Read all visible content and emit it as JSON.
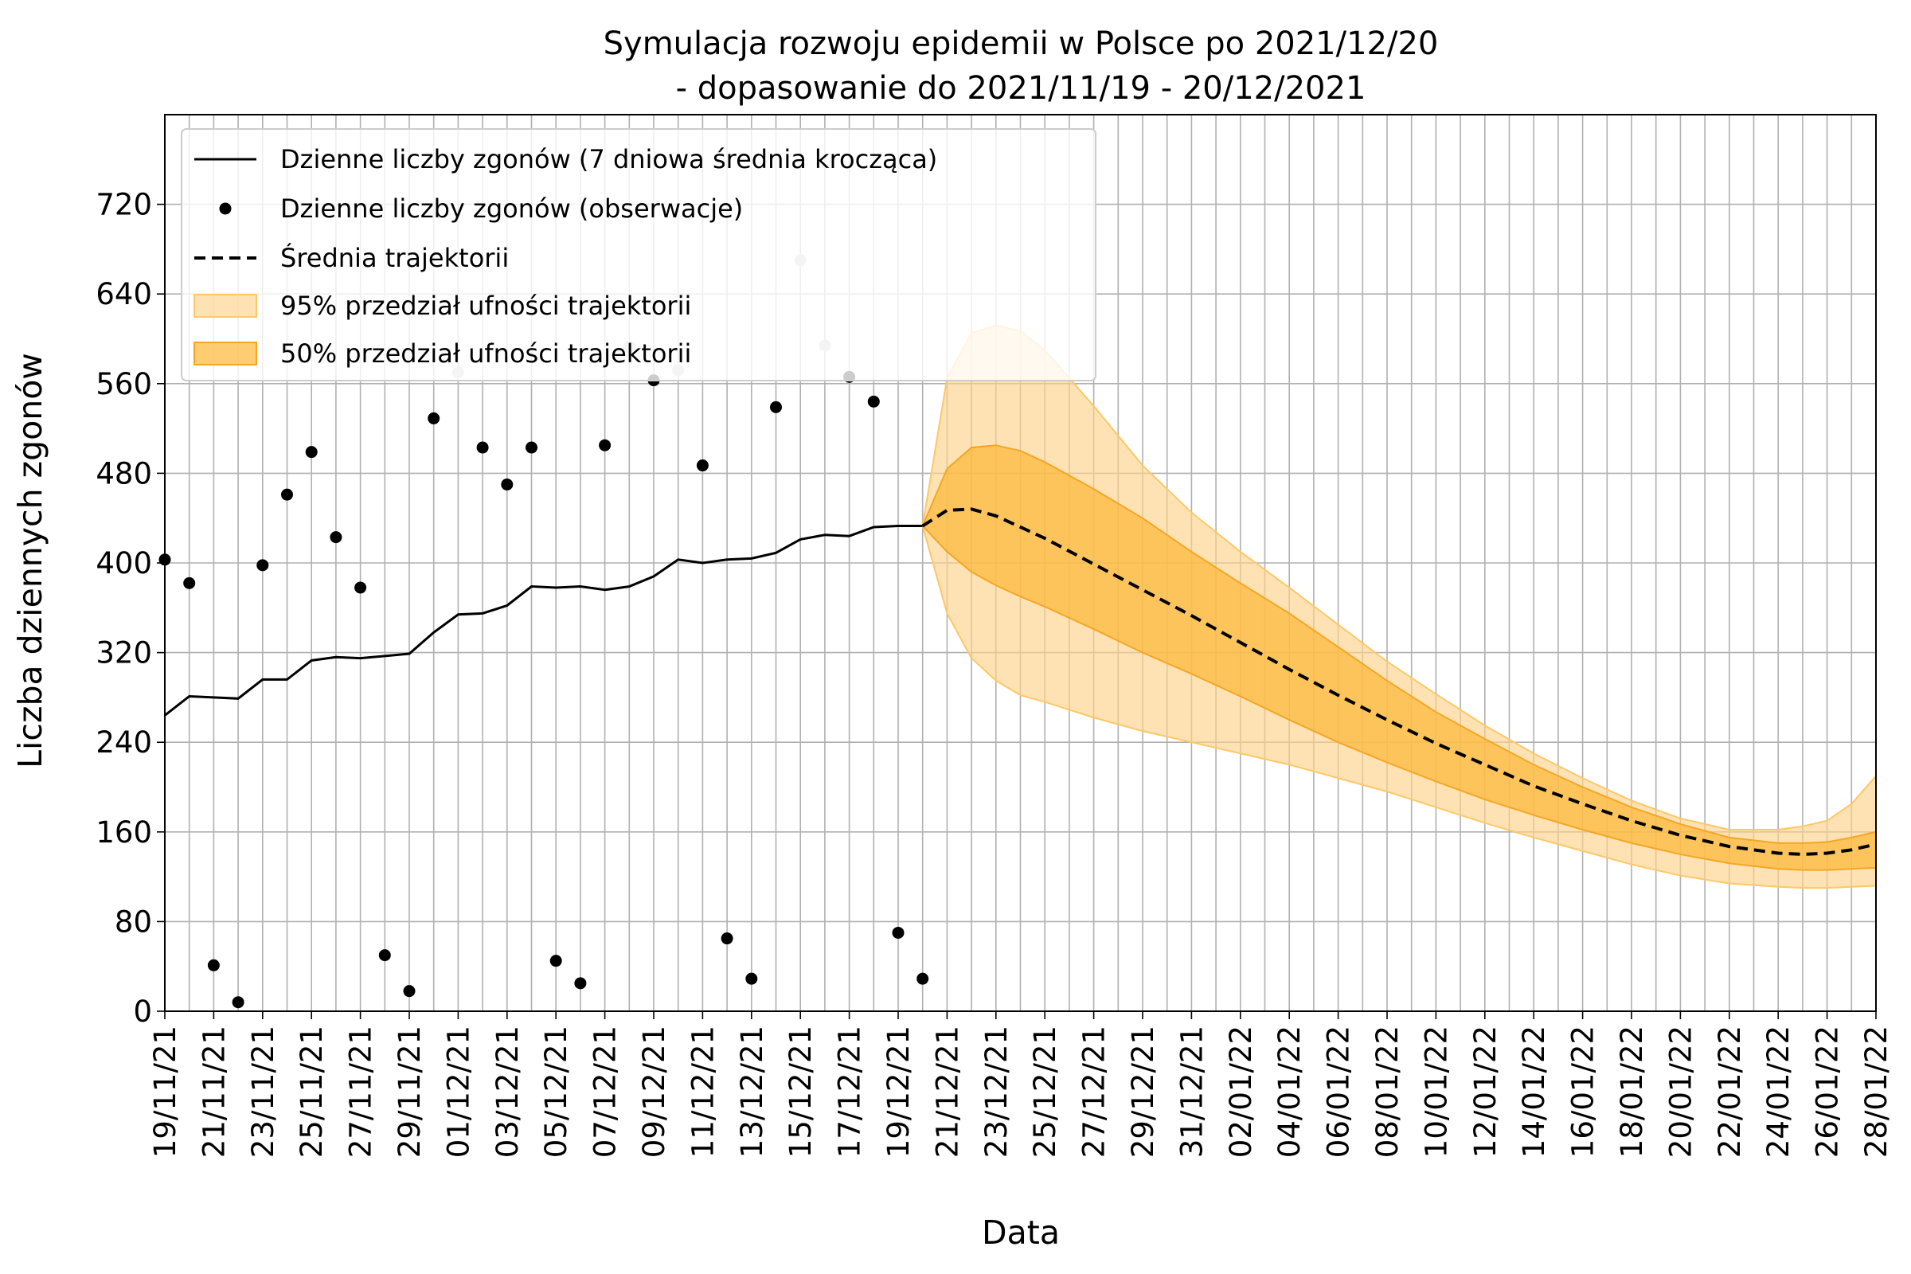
{
  "chart_data": {
    "type": "line",
    "title": "Symulacja rozwoju epidemii w Polsce po 2021/12/20",
    "subtitle": "- dopasowanie do 2021/11/19 - 20/12/2021",
    "xlabel": "Data",
    "ylabel": "Liczba dziennych zgonów",
    "ylim": [
      0,
      800
    ],
    "yticks": [
      0,
      80,
      160,
      240,
      320,
      400,
      480,
      560,
      640,
      720
    ],
    "x_start": "2021-11-19",
    "x_end": "2022-01-28",
    "grid": true,
    "legend_position": "top-left",
    "colors": {
      "band95": "#fdd38a",
      "band50": "#fdb93a",
      "line": "#000000",
      "observed": "#000000",
      "observed_faded": "#c8c8c8"
    },
    "legend": [
      {
        "label": "Dzienne liczby zgonów (7 dniowa średnia krocząca)",
        "kind": "line"
      },
      {
        "label": "Dzienne liczby zgonów (obserwacje)",
        "kind": "dot"
      },
      {
        "label": "Średnia trajektorii",
        "kind": "dash"
      },
      {
        "label": "95% przedział ufności trajektorii",
        "kind": "band95"
      },
      {
        "label": "50% przedział ufności trajektorii",
        "kind": "band50"
      }
    ],
    "xtick_labels": [
      "19/11/21",
      "21/11/21",
      "23/11/21",
      "25/11/21",
      "27/11/21",
      "29/11/21",
      "01/12/21",
      "03/12/21",
      "05/12/21",
      "07/12/21",
      "09/12/21",
      "11/12/21",
      "13/12/21",
      "15/12/21",
      "17/12/21",
      "19/12/21",
      "21/12/21",
      "23/12/21",
      "25/12/21",
      "27/12/21",
      "29/12/21",
      "31/12/21",
      "02/01/22",
      "04/01/22",
      "06/01/22",
      "08/01/22",
      "10/01/22",
      "12/01/22",
      "14/01/22",
      "16/01/22",
      "18/01/22",
      "20/01/22",
      "22/01/22",
      "24/01/22",
      "26/01/22",
      "28/01/22"
    ],
    "series": [
      {
        "name": "Dzienne liczby zgonów (7 dniowa średnia krocząca)",
        "style": "solid",
        "x": [
          "2021-11-19",
          "2021-11-20",
          "2021-11-21",
          "2021-11-22",
          "2021-11-23",
          "2021-11-24",
          "2021-11-25",
          "2021-11-26",
          "2021-11-27",
          "2021-11-28",
          "2021-11-29",
          "2021-11-30",
          "2021-12-01",
          "2021-12-02",
          "2021-12-03",
          "2021-12-04",
          "2021-12-05",
          "2021-12-06",
          "2021-12-07",
          "2021-12-08",
          "2021-12-09",
          "2021-12-10",
          "2021-12-11",
          "2021-12-12",
          "2021-12-13",
          "2021-12-14",
          "2021-12-15",
          "2021-12-16",
          "2021-12-17",
          "2021-12-18",
          "2021-12-19",
          "2021-12-20"
        ],
        "y": [
          264,
          281,
          280,
          279,
          296,
          296,
          313,
          316,
          315,
          317,
          319,
          338,
          354,
          355,
          362,
          379,
          378,
          379,
          376,
          379,
          388,
          403,
          400,
          403,
          404,
          409,
          421,
          425,
          424,
          432,
          433,
          433
        ]
      },
      {
        "name": "Dzienne liczby zgonów (obserwacje)",
        "style": "dots",
        "points": [
          {
            "x": "2021-11-19",
            "y": 403
          },
          {
            "x": "2021-11-20",
            "y": 382
          },
          {
            "x": "2021-11-21",
            "y": 41
          },
          {
            "x": "2021-11-22",
            "y": 8
          },
          {
            "x": "2021-11-23",
            "y": 398
          },
          {
            "x": "2021-11-24",
            "y": 461
          },
          {
            "x": "2021-11-25",
            "y": 499
          },
          {
            "x": "2021-11-26",
            "y": 423
          },
          {
            "x": "2021-11-27",
            "y": 378
          },
          {
            "x": "2021-11-28",
            "y": 50
          },
          {
            "x": "2021-11-29",
            "y": 18
          },
          {
            "x": "2021-11-30",
            "y": 529
          },
          {
            "x": "2021-12-01",
            "y": 570,
            "faded": true
          },
          {
            "x": "2021-12-02",
            "y": 503
          },
          {
            "x": "2021-12-03",
            "y": 470
          },
          {
            "x": "2021-12-04",
            "y": 503
          },
          {
            "x": "2021-12-05",
            "y": 45
          },
          {
            "x": "2021-12-06",
            "y": 25
          },
          {
            "x": "2021-12-07",
            "y": 505
          },
          {
            "x": "2021-12-08",
            "y": 593,
            "faded": true
          },
          {
            "x": "2021-12-09",
            "y": 563
          },
          {
            "x": "2021-12-10",
            "y": 572,
            "faded": true
          },
          {
            "x": "2021-12-11",
            "y": 487
          },
          {
            "x": "2021-12-12",
            "y": 65
          },
          {
            "x": "2021-12-13",
            "y": 29
          },
          {
            "x": "2021-12-14",
            "y": 539
          },
          {
            "x": "2021-12-15",
            "y": 670,
            "faded": true
          },
          {
            "x": "2021-12-16",
            "y": 594,
            "faded": true
          },
          {
            "x": "2021-12-17",
            "y": 566
          },
          {
            "x": "2021-12-18",
            "y": 544
          },
          {
            "x": "2021-12-19",
            "y": 70
          },
          {
            "x": "2021-12-20",
            "y": 29
          }
        ]
      },
      {
        "name": "Średnia trajektorii",
        "style": "dashed",
        "x": [
          "2021-12-20",
          "2021-12-21",
          "2021-12-22",
          "2021-12-23",
          "2021-12-25",
          "2021-12-27",
          "2021-12-29",
          "2021-12-31",
          "2022-01-02",
          "2022-01-04",
          "2022-01-06",
          "2022-01-08",
          "2022-01-10",
          "2022-01-12",
          "2022-01-14",
          "2022-01-16",
          "2022-01-18",
          "2022-01-20",
          "2022-01-22",
          "2022-01-24",
          "2022-01-25",
          "2022-01-26",
          "2022-01-27",
          "2022-01-28"
        ],
        "y": [
          433,
          447,
          448,
          442,
          422,
          399,
          376,
          353,
          329,
          305,
          282,
          260,
          239,
          220,
          201,
          185,
          170,
          157,
          147,
          141,
          140,
          141,
          144,
          149
        ]
      },
      {
        "name": "95% przedział ufności trajektorii",
        "style": "band",
        "x": [
          "2021-12-20",
          "2021-12-21",
          "2021-12-22",
          "2021-12-23",
          "2021-12-24",
          "2021-12-25",
          "2021-12-27",
          "2021-12-29",
          "2021-12-31",
          "2022-01-02",
          "2022-01-04",
          "2022-01-06",
          "2022-01-08",
          "2022-01-10",
          "2022-01-12",
          "2022-01-14",
          "2022-01-16",
          "2022-01-18",
          "2022-01-20",
          "2022-01-22",
          "2022-01-24",
          "2022-01-25",
          "2022-01-26",
          "2022-01-27",
          "2022-01-28"
        ],
        "lower": [
          433,
          355,
          315,
          295,
          282,
          276,
          262,
          250,
          240,
          230,
          220,
          208,
          196,
          182,
          168,
          155,
          143,
          131,
          121,
          114,
          111,
          110,
          110,
          111,
          112
        ],
        "upper": [
          433,
          565,
          605,
          612,
          607,
          590,
          540,
          487,
          445,
          410,
          378,
          345,
          312,
          283,
          255,
          230,
          208,
          188,
          172,
          162,
          162,
          165,
          170,
          185,
          210
        ]
      },
      {
        "name": "50% przedział ufności trajektorii",
        "style": "band",
        "x": [
          "2021-12-20",
          "2021-12-21",
          "2021-12-22",
          "2021-12-23",
          "2021-12-24",
          "2021-12-25",
          "2021-12-27",
          "2021-12-29",
          "2021-12-31",
          "2022-01-02",
          "2022-01-04",
          "2022-01-06",
          "2022-01-08",
          "2022-01-10",
          "2022-01-12",
          "2022-01-14",
          "2022-01-16",
          "2022-01-18",
          "2022-01-20",
          "2022-01-22",
          "2022-01-24",
          "2022-01-25",
          "2022-01-26",
          "2022-01-27",
          "2022-01-28"
        ],
        "lower": [
          433,
          410,
          392,
          380,
          370,
          361,
          341,
          320,
          301,
          281,
          260,
          240,
          222,
          205,
          189,
          175,
          162,
          150,
          140,
          132,
          127,
          126,
          126,
          127,
          128
        ],
        "upper": [
          433,
          484,
          503,
          505,
          500,
          490,
          466,
          440,
          410,
          382,
          355,
          325,
          295,
          267,
          243,
          220,
          200,
          182,
          167,
          155,
          150,
          150,
          151,
          155,
          160
        ]
      }
    ]
  }
}
